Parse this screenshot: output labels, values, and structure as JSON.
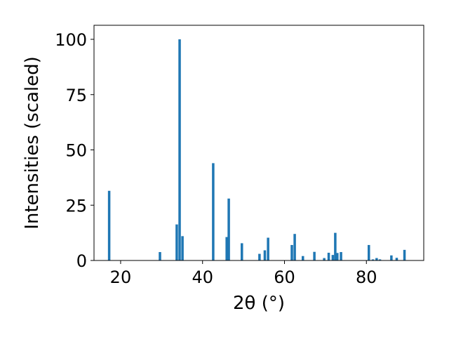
{
  "chart_data": {
    "type": "bar",
    "title": "",
    "xlabel": "2θ (°)",
    "ylabel": "Intensities (scaled)",
    "xlim": [
      13.5,
      94
    ],
    "ylim": [
      0,
      100
    ],
    "xticks": [
      20,
      40,
      60,
      80
    ],
    "yticks": [
      0,
      25,
      50,
      75,
      100
    ],
    "grid": false,
    "legend": "none",
    "bar_width": 0.6,
    "color": "#1f77b4",
    "x": [
      17.2,
      29.6,
      33.7,
      34.4,
      35.1,
      42.6,
      45.9,
      46.4,
      49.6,
      53.9,
      55.2,
      56.0,
      61.8,
      62.5,
      64.5,
      67.3,
      69.7,
      70.8,
      71.8,
      72.4,
      72.9,
      73.8,
      80.6,
      81.6,
      82.5,
      83.3,
      86.1,
      87.4,
      89.3
    ],
    "values": [
      31.5,
      3.8,
      16.3,
      100,
      11,
      44,
      10.6,
      28,
      7.8,
      3,
      4.6,
      10.3,
      7,
      12,
      2,
      3.9,
      1.1,
      3.5,
      2.5,
      12.5,
      3.4,
      3.8,
      7,
      0.5,
      1.1,
      0.5,
      2.3,
      1.2,
      4.8
    ]
  }
}
